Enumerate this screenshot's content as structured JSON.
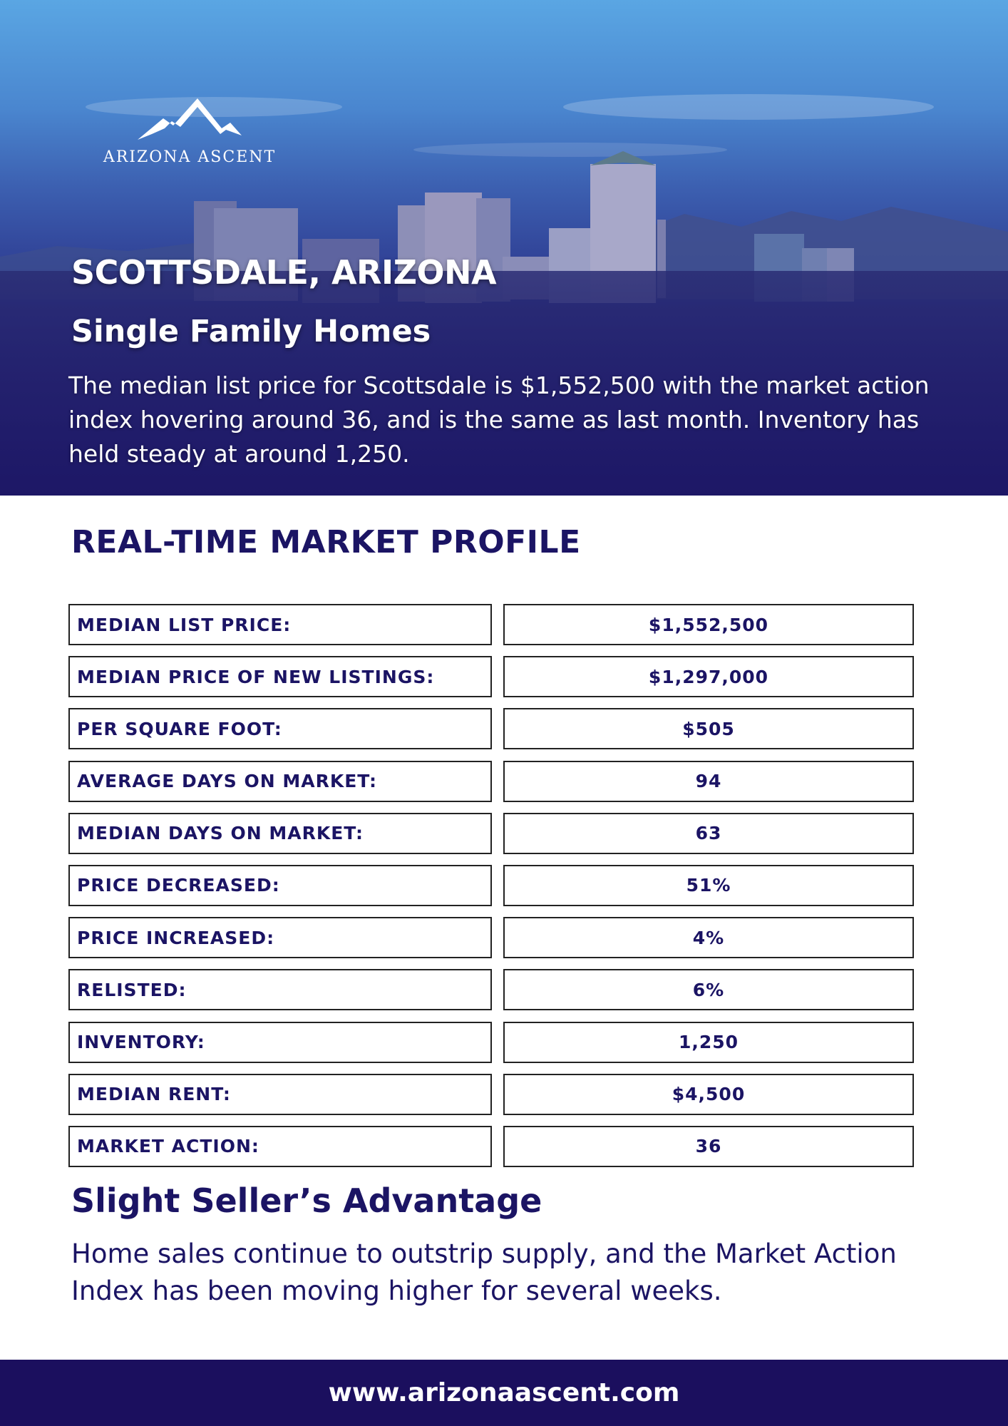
{
  "hero": {
    "logo_name": "ARIZONA ASCENT",
    "logo_icon": "mountain-logo-icon",
    "city_title": "SCOTTSDALE, ARIZONA",
    "subtitle": "Single Family Homes",
    "intro": "The median list price for Scottsdale is $1,552,500 with the market action index hovering around 36, and is the same as last month. Inventory has held steady at around 1,250."
  },
  "profile": {
    "title": "REAL-TIME MARKET PROFILE",
    "rows": [
      {
        "label": "MEDIAN LIST PRICE:",
        "value": "$1,552,500"
      },
      {
        "label": "MEDIAN PRICE OF NEW LISTINGS:",
        "value": "$1,297,000"
      },
      {
        "label": "PER SQUARE FOOT:",
        "value": "$505"
      },
      {
        "label": "AVERAGE DAYS ON MARKET:",
        "value": "94"
      },
      {
        "label": "MEDIAN DAYS ON MARKET:",
        "value": "63"
      },
      {
        "label": "PRICE DECREASED:",
        "value": "51%"
      },
      {
        "label": "PRICE INCREASED:",
        "value": "4%"
      },
      {
        "label": "RELISTED:",
        "value": "6%"
      },
      {
        "label": "INVENTORY:",
        "value": "1,250"
      },
      {
        "label": "MEDIAN RENT:",
        "value": "$4,500"
      },
      {
        "label": "MARKET ACTION:",
        "value": "36"
      }
    ]
  },
  "advantage": {
    "title": "Slight Seller’s Advantage",
    "text": "Home sales continue to outstrip supply, and the Market Action Index has been moving higher for several weeks."
  },
  "footer": {
    "url": "www.arizonaascent.com"
  },
  "colors": {
    "navy": "#1b1464",
    "footer_bg": "#1b0f5e",
    "sky_top": "#5aa6e3"
  }
}
